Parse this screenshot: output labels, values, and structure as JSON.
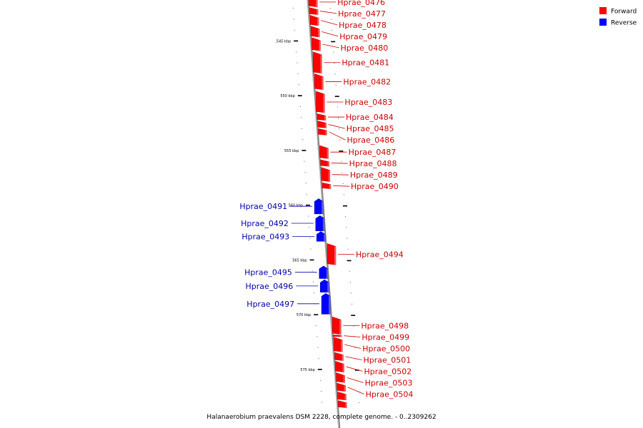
{
  "caption": "Halanaerobium praevalens DSM 2228, complete genome. - 0..2309262",
  "legend": [
    {
      "label": "Forward",
      "color": "#ff0000"
    },
    {
      "label": "Reverse",
      "color": "#0000ff"
    }
  ],
  "colors": {
    "forward": "#ff0000",
    "reverse": "#0000ff",
    "forward_label": "#cc0000",
    "reverse_label": "#0000aa",
    "backbone": "#888888"
  },
  "axis": {
    "start_kbp": 541,
    "end_kbp": 578.5,
    "major_ticks": [
      {
        "kbp": 545,
        "label": "545 kbp"
      },
      {
        "kbp": 550,
        "label": "550 kbp"
      },
      {
        "kbp": 555,
        "label": "555 kbp"
      },
      {
        "kbp": 560,
        "label": "560 kbp"
      },
      {
        "kbp": 565,
        "label": "565 kbp"
      },
      {
        "kbp": 570,
        "label": "570 kbp"
      },
      {
        "kbp": 575,
        "label": "575 kbp"
      }
    ]
  },
  "genes": [
    {
      "name": "Hprae_0476",
      "strand": "forward",
      "start_kbp": 541.0,
      "end_kbp": 541.9
    },
    {
      "name": "Hprae_0477",
      "strand": "forward",
      "start_kbp": 541.95,
      "end_kbp": 542.6
    },
    {
      "name": "Hprae_0478",
      "strand": "forward",
      "start_kbp": 542.65,
      "end_kbp": 543.6
    },
    {
      "name": "Hprae_0479",
      "strand": "forward",
      "start_kbp": 543.65,
      "end_kbp": 544.65
    },
    {
      "name": "Hprae_0480",
      "strand": "forward",
      "start_kbp": 544.7,
      "end_kbp": 545.9
    },
    {
      "name": "Hprae_0481",
      "strand": "forward",
      "start_kbp": 546.0,
      "end_kbp": 547.95
    },
    {
      "name": "Hprae_0482",
      "strand": "forward",
      "start_kbp": 548.0,
      "end_kbp": 549.45
    },
    {
      "name": "Hprae_0483",
      "strand": "forward",
      "start_kbp": 549.6,
      "end_kbp": 551.55
    },
    {
      "name": "Hprae_0484",
      "strand": "forward",
      "start_kbp": 551.65,
      "end_kbp": 552.25
    },
    {
      "name": "Hprae_0485",
      "strand": "forward",
      "start_kbp": 552.3,
      "end_kbp": 552.95
    },
    {
      "name": "Hprae_0486",
      "strand": "forward",
      "start_kbp": 553.0,
      "end_kbp": 553.6
    },
    {
      "name": "Hprae_0487",
      "strand": "forward",
      "start_kbp": 554.55,
      "end_kbp": 555.75
    },
    {
      "name": "Hprae_0488",
      "strand": "forward",
      "start_kbp": 555.85,
      "end_kbp": 556.45
    },
    {
      "name": "Hprae_0489",
      "strand": "forward",
      "start_kbp": 556.55,
      "end_kbp": 557.85
    },
    {
      "name": "Hprae_0490",
      "strand": "forward",
      "start_kbp": 557.95,
      "end_kbp": 558.5
    },
    {
      "name": "Hprae_0491",
      "strand": "reverse",
      "start_kbp": 559.4,
      "end_kbp": 560.8
    },
    {
      "name": "Hprae_0492",
      "strand": "reverse",
      "start_kbp": 560.95,
      "end_kbp": 562.35
    },
    {
      "name": "Hprae_0493",
      "strand": "reverse",
      "start_kbp": 562.4,
      "end_kbp": 563.3
    },
    {
      "name": "Hprae_0494",
      "strand": "forward",
      "start_kbp": 563.5,
      "end_kbp": 565.45
    },
    {
      "name": "Hprae_0495",
      "strand": "reverse",
      "start_kbp": 565.55,
      "end_kbp": 566.7
    },
    {
      "name": "Hprae_0496",
      "strand": "reverse",
      "start_kbp": 566.8,
      "end_kbp": 567.95
    },
    {
      "name": "Hprae_0497",
      "strand": "reverse",
      "start_kbp": 568.05,
      "end_kbp": 569.95
    },
    {
      "name": "Hprae_0498",
      "strand": "forward",
      "start_kbp": 570.2,
      "end_kbp": 571.8
    },
    {
      "name": "Hprae_0499",
      "strand": "forward",
      "start_kbp": 571.85,
      "end_kbp": 572.0
    },
    {
      "name": "Hprae_0500",
      "strand": "forward",
      "start_kbp": 572.05,
      "end_kbp": 573.4
    },
    {
      "name": "Hprae_0501",
      "strand": "forward",
      "start_kbp": 573.45,
      "end_kbp": 574.2
    },
    {
      "name": "Hprae_0502",
      "strand": "forward",
      "start_kbp": 574.25,
      "end_kbp": 575.25
    },
    {
      "name": "Hprae_0503",
      "strand": "forward",
      "start_kbp": 575.3,
      "end_kbp": 576.2
    },
    {
      "name": "Hprae_0504",
      "strand": "forward",
      "start_kbp": 576.25,
      "end_kbp": 577.0
    },
    {
      "name": "",
      "strand": "forward",
      "start_kbp": 577.05,
      "end_kbp": 577.8
    },
    {
      "name": "",
      "strand": "forward",
      "start_kbp": 577.85,
      "end_kbp": 578.5
    }
  ]
}
